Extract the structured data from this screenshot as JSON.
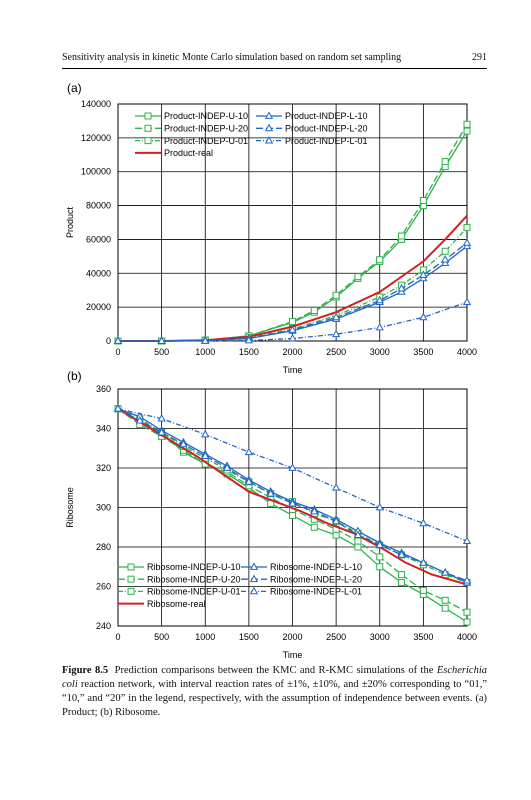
{
  "header": {
    "running_title": "Sensitivity analysis in kinetic Monte Carlo simulation based on random set sampling",
    "page_number": "291"
  },
  "caption": {
    "label": "Figure 8.5",
    "text_1": "Prediction comparisons between the KMC and R-KMC simulations of the",
    "species": "Escherichia coli",
    "text_2": "reaction network, with interval reaction rates of ±1%, ±10%, and ±20% corresponding to “01,” “10,” and “20” in the legend, respectively, with the assumption of independence between events. (a) Product; (b) Ribosome."
  },
  "colors": {
    "green": "#2db34a",
    "blue": "#2266c8",
    "red": "#d42020",
    "grid": "#000000"
  },
  "chart_data": [
    {
      "type": "line",
      "panel_label": "(a)",
      "xlabel": "Time",
      "ylabel": "Product",
      "xlim": [
        0,
        4000
      ],
      "ylim": [
        0,
        140000
      ],
      "xticks": [
        0,
        500,
        1000,
        1500,
        2000,
        2500,
        3000,
        3500,
        4000
      ],
      "yticks": [
        0,
        20000,
        40000,
        60000,
        80000,
        100000,
        120000,
        140000
      ],
      "legend_position": "top-left",
      "grid": true,
      "series": [
        {
          "name": "Product-INDEP-U-10",
          "color": "green",
          "dash": "solid",
          "marker": "square",
          "points": [
            [
              0,
              0
            ],
            [
              500,
              0
            ],
            [
              1000,
              500
            ],
            [
              1500,
              3000
            ],
            [
              2000,
              11000
            ],
            [
              2250,
              17000
            ],
            [
              2500,
              26000
            ],
            [
              2750,
              37000
            ],
            [
              3000,
              47000
            ],
            [
              3250,
              60000
            ],
            [
              3500,
              80000
            ],
            [
              3750,
              103000
            ],
            [
              4000,
              124000
            ]
          ]
        },
        {
          "name": "Product-INDEP-U-20",
          "color": "green",
          "dash": "longdash",
          "marker": "square",
          "points": [
            [
              0,
              0
            ],
            [
              500,
              0
            ],
            [
              1000,
              500
            ],
            [
              1500,
              3000
            ],
            [
              2000,
              11500
            ],
            [
              2250,
              18000
            ],
            [
              2500,
              27000
            ],
            [
              2750,
              38000
            ],
            [
              3000,
              48000
            ],
            [
              3250,
              62000
            ],
            [
              3500,
              83000
            ],
            [
              3750,
              106000
            ],
            [
              4000,
              128000
            ]
          ]
        },
        {
          "name": "Product-INDEP-U-01",
          "color": "green",
          "dash": "dashdot",
          "marker": "square",
          "points": [
            [
              0,
              0
            ],
            [
              500,
              0
            ],
            [
              1000,
              400
            ],
            [
              1500,
              2000
            ],
            [
              2000,
              7000
            ],
            [
              2500,
              15000
            ],
            [
              3000,
              26000
            ],
            [
              3250,
              33000
            ],
            [
              3500,
              42000
            ],
            [
              3750,
              53000
            ],
            [
              4000,
              67000
            ]
          ]
        },
        {
          "name": "Product-real",
          "color": "red",
          "dash": "solid",
          "marker": "none",
          "points": [
            [
              0,
              0
            ],
            [
              500,
              0
            ],
            [
              1000,
              400
            ],
            [
              1500,
              2500
            ],
            [
              2000,
              8500
            ],
            [
              2500,
              17000
            ],
            [
              3000,
              29000
            ],
            [
              3500,
              47000
            ],
            [
              3750,
              60000
            ],
            [
              4000,
              74000
            ]
          ]
        },
        {
          "name": "Product-INDEP-L-10",
          "color": "blue",
          "dash": "solid",
          "marker": "triangle",
          "points": [
            [
              0,
              0
            ],
            [
              500,
              0
            ],
            [
              1000,
              300
            ],
            [
              1500,
              1500
            ],
            [
              2000,
              6000
            ],
            [
              2500,
              13000
            ],
            [
              3000,
              23000
            ],
            [
              3250,
              29000
            ],
            [
              3500,
              37000
            ],
            [
              3750,
              46000
            ],
            [
              4000,
              56000
            ]
          ]
        },
        {
          "name": "Product-INDEP-L-20",
          "color": "blue",
          "dash": "longdash",
          "marker": "triangle",
          "points": [
            [
              0,
              0
            ],
            [
              500,
              0
            ],
            [
              1000,
              300
            ],
            [
              1500,
              1500
            ],
            [
              2000,
              6500
            ],
            [
              2500,
              14000
            ],
            [
              3000,
              24000
            ],
            [
              3250,
              31000
            ],
            [
              3500,
              39000
            ],
            [
              3750,
              48000
            ],
            [
              4000,
              58000
            ]
          ]
        },
        {
          "name": "Product-INDEP-L-01",
          "color": "blue",
          "dash": "dashdot",
          "marker": "triangle",
          "points": [
            [
              0,
              0
            ],
            [
              500,
              0
            ],
            [
              1000,
              0
            ],
            [
              1500,
              300
            ],
            [
              2000,
              1500
            ],
            [
              2500,
              4000
            ],
            [
              3000,
              8000
            ],
            [
              3500,
              14000
            ],
            [
              4000,
              23000
            ]
          ]
        }
      ]
    },
    {
      "type": "line",
      "panel_label": "(b)",
      "xlabel": "Time",
      "ylabel": "Ribosome",
      "xlim": [
        0,
        4000
      ],
      "ylim": [
        240,
        360
      ],
      "xticks": [
        0,
        500,
        1000,
        1500,
        2000,
        2500,
        3000,
        3500,
        4000
      ],
      "yticks": [
        240,
        260,
        280,
        300,
        320,
        340,
        360
      ],
      "legend_position": "bottom-left",
      "grid": true,
      "series": [
        {
          "name": "Ribosome-INDEP-U-10",
          "color": "green",
          "dash": "solid",
          "marker": "square",
          "points": [
            [
              0,
              350
            ],
            [
              250,
              343
            ],
            [
              500,
              338
            ],
            [
              750,
              328
            ],
            [
              1000,
              322
            ],
            [
              1250,
              317
            ],
            [
              1500,
              310
            ],
            [
              1750,
              302
            ],
            [
              2000,
              296
            ],
            [
              2250,
              290
            ],
            [
              2500,
              286
            ],
            [
              2750,
              280
            ],
            [
              3000,
              270
            ],
            [
              3250,
              262
            ],
            [
              3500,
              256
            ],
            [
              3750,
              249
            ],
            [
              4000,
              242
            ]
          ]
        },
        {
          "name": "Ribosome-INDEP-U-20",
          "color": "green",
          "dash": "longdash",
          "marker": "square",
          "points": [
            [
              0,
              350
            ],
            [
              250,
              342
            ],
            [
              500,
              336
            ],
            [
              750,
              329
            ],
            [
              1000,
              322
            ],
            [
              1250,
              318
            ],
            [
              1500,
              311
            ],
            [
              1750,
              305
            ],
            [
              2000,
              299
            ],
            [
              2250,
              294
            ],
            [
              2500,
              289
            ],
            [
              2750,
              283
            ],
            [
              3000,
              275
            ],
            [
              3250,
              266
            ],
            [
              3500,
              258
            ],
            [
              3750,
              253
            ],
            [
              4000,
              247
            ]
          ]
        },
        {
          "name": "Ribosome-INDEP-U-01",
          "color": "green",
          "dash": "dashdot",
          "marker": "square",
          "points": [
            [
              0,
              350
            ],
            [
              250,
              345
            ],
            [
              500,
              338
            ],
            [
              750,
              331
            ],
            [
              1000,
              325
            ],
            [
              1250,
              319
            ],
            [
              1500,
              313
            ],
            [
              1750,
              307
            ],
            [
              2000,
              303
            ],
            [
              2250,
              297
            ],
            [
              2500,
              293
            ],
            [
              2750,
              287
            ],
            [
              3000,
              281
            ],
            [
              3250,
              276
            ],
            [
              3500,
              271
            ],
            [
              3750,
              266
            ],
            [
              4000,
              262
            ]
          ]
        },
        {
          "name": "Ribosome-real",
          "color": "red",
          "dash": "solid",
          "marker": "none",
          "points": [
            [
              0,
              350
            ],
            [
              300,
              342
            ],
            [
              600,
              334
            ],
            [
              900,
              326
            ],
            [
              1200,
              317
            ],
            [
              1500,
              308
            ],
            [
              1800,
              303
            ],
            [
              2100,
              298
            ],
            [
              2400,
              292
            ],
            [
              2700,
              287
            ],
            [
              3000,
              280
            ],
            [
              3300,
              272
            ],
            [
              3600,
              266
            ],
            [
              4000,
              261
            ]
          ]
        },
        {
          "name": "Ribosome-INDEP-L-10",
          "color": "blue",
          "dash": "solid",
          "marker": "triangle",
          "points": [
            [
              0,
              350
            ],
            [
              250,
              346
            ],
            [
              500,
              339
            ],
            [
              750,
              333
            ],
            [
              1000,
              327
            ],
            [
              1250,
              321
            ],
            [
              1500,
              314
            ],
            [
              1750,
              308
            ],
            [
              2000,
              303
            ],
            [
              2250,
              299
            ],
            [
              2500,
              294
            ],
            [
              2750,
              288
            ],
            [
              3000,
              282
            ],
            [
              3250,
              277
            ],
            [
              3500,
              272
            ],
            [
              3750,
              267
            ],
            [
              4000,
              262
            ]
          ]
        },
        {
          "name": "Ribosome-INDEP-L-20",
          "color": "blue",
          "dash": "longdash",
          "marker": "triangle",
          "points": [
            [
              0,
              350
            ],
            [
              250,
              344
            ],
            [
              500,
              338
            ],
            [
              750,
              332
            ],
            [
              1000,
              326
            ],
            [
              1250,
              320
            ],
            [
              1500,
              313
            ],
            [
              1750,
              307
            ],
            [
              2000,
              302
            ],
            [
              2250,
              298
            ],
            [
              2500,
              293
            ],
            [
              2750,
              286
            ],
            [
              3000,
              281
            ],
            [
              3250,
              276
            ],
            [
              3500,
              272
            ],
            [
              3750,
              267
            ],
            [
              4000,
              263
            ]
          ]
        },
        {
          "name": "Ribosome-INDEP-L-01",
          "color": "blue",
          "dash": "dashdot",
          "marker": "triangle",
          "points": [
            [
              0,
              350
            ],
            [
              500,
              345
            ],
            [
              1000,
              337
            ],
            [
              1500,
              328
            ],
            [
              2000,
              320
            ],
            [
              2500,
              310
            ],
            [
              3000,
              300
            ],
            [
              3500,
              292
            ],
            [
              4000,
              283
            ]
          ]
        }
      ]
    }
  ]
}
